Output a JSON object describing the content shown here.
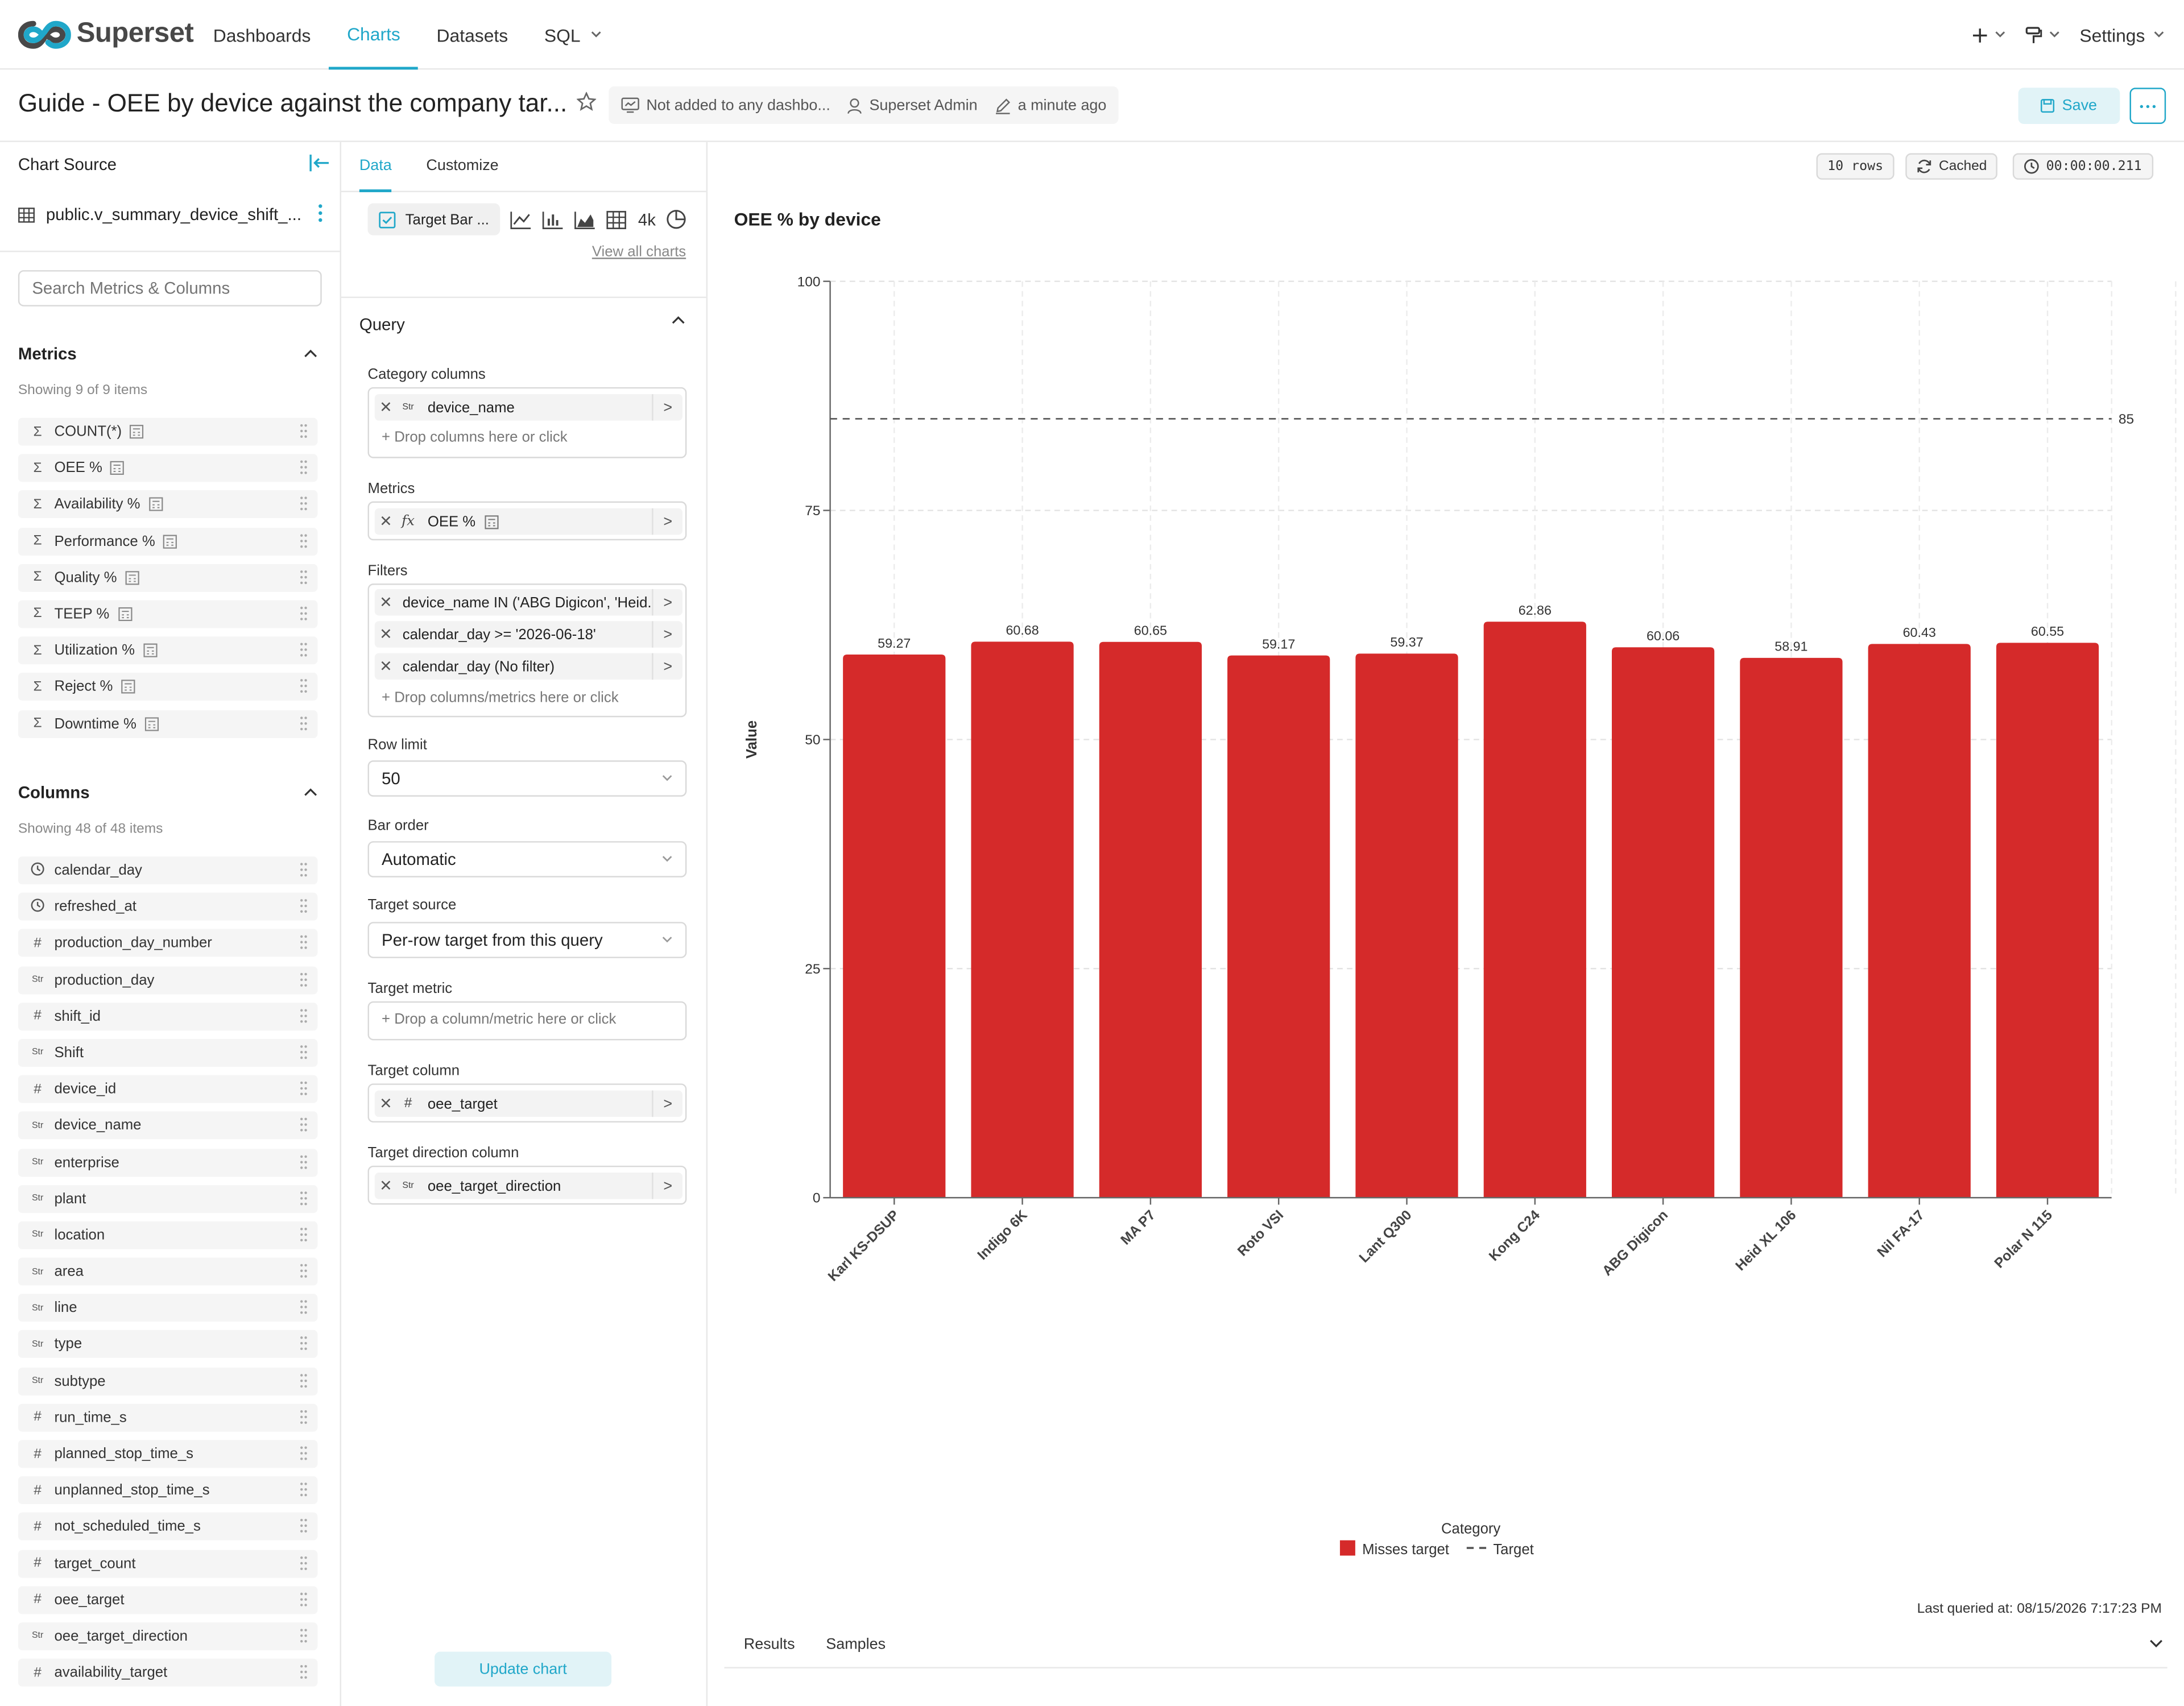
{
  "navbar": {
    "brand": "Superset",
    "items": [
      {
        "label": "Dashboards",
        "active": false
      },
      {
        "label": "Charts",
        "active": true
      },
      {
        "label": "Datasets",
        "active": false
      },
      {
        "label": "SQL",
        "active": false
      }
    ],
    "settings": "Settings"
  },
  "header": {
    "title": "Guide - OEE by device against the company tar...",
    "dashboards": "Not added to any dashbo...",
    "owner": "Superset Admin",
    "modified": "a minute ago",
    "save": "Save"
  },
  "datasource": {
    "panel_title": "Chart Source",
    "name": "public.v_summary_device_shift_...",
    "search_placeholder": "Search Metrics & Columns",
    "metrics_title": "Metrics",
    "metrics_count": "Showing 9 of 9 items",
    "metrics": [
      "COUNT(*)",
      "OEE %",
      "Availability %",
      "Performance %",
      "Quality %",
      "TEEP %",
      "Utilization %",
      "Reject %",
      "Downtime %"
    ],
    "columns_title": "Columns",
    "columns_count": "Showing 48 of 48 items",
    "columns": [
      {
        "name": "calendar_day",
        "type": "time"
      },
      {
        "name": "refreshed_at",
        "type": "time"
      },
      {
        "name": "production_day_number",
        "type": "num"
      },
      {
        "name": "production_day",
        "type": "str"
      },
      {
        "name": "shift_id",
        "type": "num"
      },
      {
        "name": "Shift",
        "type": "str"
      },
      {
        "name": "device_id",
        "type": "num"
      },
      {
        "name": "device_name",
        "type": "str"
      },
      {
        "name": "enterprise",
        "type": "str"
      },
      {
        "name": "plant",
        "type": "str"
      },
      {
        "name": "location",
        "type": "str"
      },
      {
        "name": "area",
        "type": "str"
      },
      {
        "name": "line",
        "type": "str"
      },
      {
        "name": "type",
        "type": "str"
      },
      {
        "name": "subtype",
        "type": "str"
      },
      {
        "name": "run_time_s",
        "type": "num"
      },
      {
        "name": "planned_stop_time_s",
        "type": "num"
      },
      {
        "name": "unplanned_stop_time_s",
        "type": "num"
      },
      {
        "name": "not_scheduled_time_s",
        "type": "num"
      },
      {
        "name": "target_count",
        "type": "num"
      },
      {
        "name": "oee_target",
        "type": "num"
      },
      {
        "name": "oee_target_direction",
        "type": "str"
      },
      {
        "name": "availability_target",
        "type": "num"
      }
    ]
  },
  "controls": {
    "tabs": [
      "Data",
      "Customize"
    ],
    "viz_type": "Target Bar ...",
    "viz_4k": "4k",
    "view_all": "View all charts",
    "query_title": "Query",
    "category_label": "Category columns",
    "category_value": "device_name",
    "category_drop": "Drop columns here or click",
    "metrics_label": "Metrics",
    "metric_value": "OEE %",
    "filters_label": "Filters",
    "filters": [
      "device_name IN ('ABG Digicon', 'Heid...",
      "calendar_day >= '2026-06-18'",
      "calendar_day (No filter)"
    ],
    "filters_drop": "Drop columns/metrics here or click",
    "row_limit_label": "Row limit",
    "row_limit": "50",
    "bar_order_label": "Bar order",
    "bar_order": "Automatic",
    "target_source_label": "Target source",
    "target_source": "Per-row target from this query",
    "target_metric_label": "Target metric",
    "target_metric_drop": "Drop a column/metric here or click",
    "target_column_label": "Target column",
    "target_column": "oee_target",
    "target_direction_label": "Target direction column",
    "target_direction": "oee_target_direction",
    "update_button": "Update chart"
  },
  "status": {
    "rows": "10 rows",
    "cached": "Cached",
    "duration": "00:00:00.211"
  },
  "chart_data": {
    "type": "bar",
    "title": "OEE % by device",
    "xlabel": "Category",
    "ylabel": "Value",
    "categories": [
      "Karl KS-DSUP",
      "Indigo 6K",
      "MA P7",
      "Roto VSI",
      "Lant Q300",
      "Kong C24",
      "ABG Digicon",
      "Heid XL 106",
      "Nil FA-17",
      "Polar N 115"
    ],
    "values": [
      59.27,
      60.68,
      60.65,
      59.17,
      59.37,
      62.86,
      60.06,
      58.91,
      60.43,
      60.55
    ],
    "ylim": [
      0,
      100
    ],
    "yticks": [
      0,
      25,
      50,
      75,
      100
    ],
    "target": 85,
    "target_label": "85",
    "bar_color": "#d52a2a",
    "grid": true,
    "legend_position": "bottom",
    "legend": [
      {
        "name": "Misses target",
        "kind": "bar",
        "color": "#d52a2a"
      },
      {
        "name": "Target",
        "kind": "dashed-line",
        "color": "#555555"
      }
    ]
  },
  "footer": {
    "last_queried": "Last queried at: 08/15/2026 7:17:23 PM",
    "tabs": [
      "Results",
      "Samples"
    ]
  }
}
